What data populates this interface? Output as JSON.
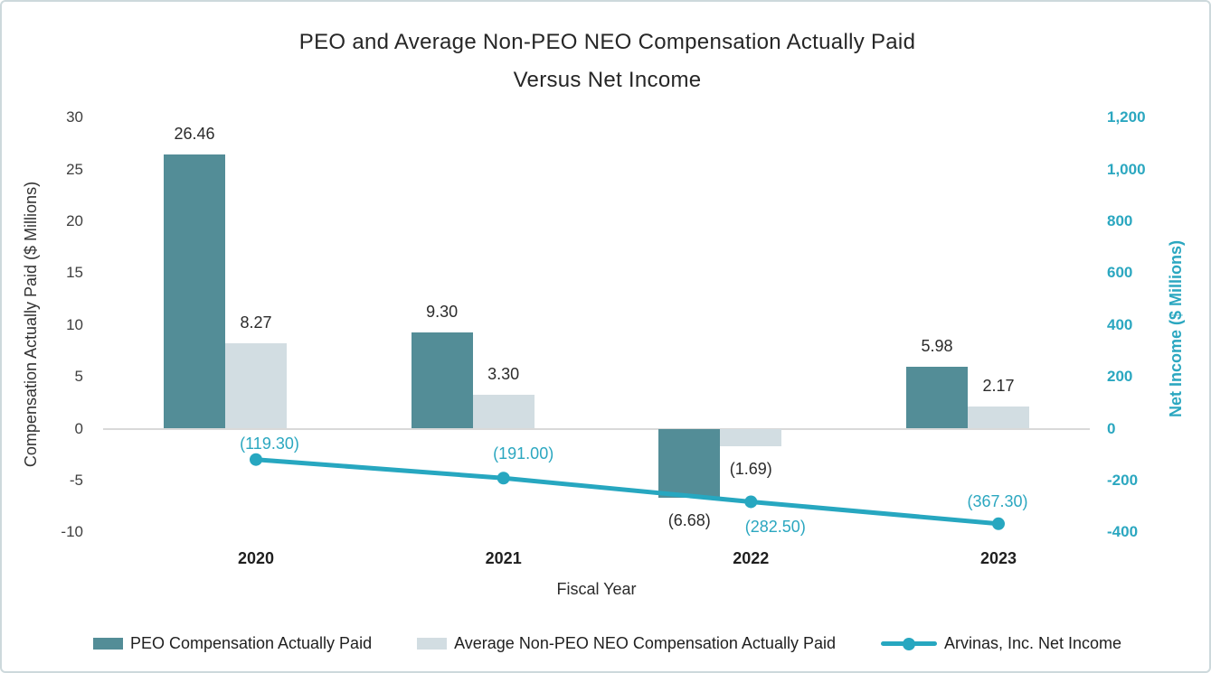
{
  "title": {
    "line1": "PEO and Average Non-PEO NEO Compensation Actually Paid",
    "line2": "Versus Net Income"
  },
  "axes": {
    "left": {
      "title": "Compensation Actually Paid ($ Millions)",
      "tick_labels": [
        "30",
        "25",
        "20",
        "15",
        "10",
        "5",
        "0",
        "-5",
        "-10"
      ],
      "tick_values": [
        30,
        25,
        20,
        15,
        10,
        5,
        0,
        -5,
        -10
      ],
      "range": [
        -10,
        30
      ]
    },
    "right": {
      "title": "Net Income ($ Millions)",
      "tick_labels": [
        "1,200",
        "1,000",
        "800",
        "600",
        "400",
        "200",
        "0",
        "-200",
        "-400"
      ],
      "tick_values": [
        1200,
        1000,
        800,
        600,
        400,
        200,
        0,
        -200,
        -400
      ],
      "range": [
        -400,
        1200
      ]
    },
    "x": {
      "title": "Fiscal Year",
      "categories": [
        "2020",
        "2021",
        "2022",
        "2023"
      ]
    }
  },
  "chart_data": {
    "type": "combo-bar-line",
    "categories": [
      "2020",
      "2021",
      "2022",
      "2023"
    ],
    "series": [
      {
        "name": "PEO Compensation Actually Paid",
        "type": "bar",
        "axis": "left",
        "values": [
          26.46,
          9.3,
          -6.68,
          5.98
        ],
        "labels": [
          "26.46",
          "9.30",
          "(6.68)",
          "5.98"
        ],
        "color": "#538d97"
      },
      {
        "name": "Average Non-PEO NEO Compensation Actually Paid",
        "type": "bar",
        "axis": "left",
        "values": [
          8.27,
          3.3,
          -1.69,
          2.17
        ],
        "labels": [
          "8.27",
          "3.30",
          "(1.69)",
          "2.17"
        ],
        "color": "#d2dde2"
      },
      {
        "name": "Arvinas, Inc. Net Income",
        "type": "line",
        "axis": "right",
        "values": [
          -119.3,
          -191.0,
          -282.5,
          -367.3
        ],
        "labels": [
          "(119.30)",
          "(191.00)",
          "(282.50)",
          "(367.30)"
        ],
        "color": "#27a7c0"
      }
    ],
    "title": "PEO and Average Non-PEO NEO Compensation Actually Paid Versus Net Income",
    "xlabel": "Fiscal Year",
    "ylabel_left": "Compensation Actually Paid ($ Millions)",
    "ylabel_right": "Net Income ($ Millions)",
    "ylim_left": [
      -10,
      30
    ],
    "ylim_right": [
      -400,
      1200
    ],
    "grid": false,
    "legend_position": "bottom"
  },
  "colors": {
    "peo_bar": "#538d97",
    "non_peo_bar": "#d2dde2",
    "net_income": "#27a7c0",
    "net_income_text": "#2ba7c0",
    "zero_line": "#d9d9d9",
    "frame_border": "#cdd9dc",
    "title_text": "#262626",
    "tick_text": "#3f3f3f"
  }
}
